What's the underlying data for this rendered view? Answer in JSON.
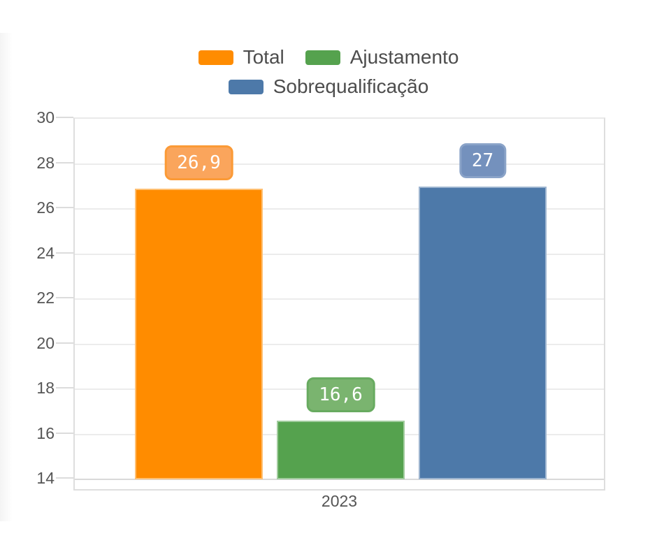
{
  "page": {
    "background": "#ffffff"
  },
  "legend": {
    "items": [
      {
        "label": "Total",
        "color": "#ff8c00"
      },
      {
        "label": "Ajustamento",
        "color": "#55a24e"
      },
      {
        "label": "Sobrequalificação",
        "color": "#4d79a9"
      }
    ],
    "text_color": "#4d4d4d"
  },
  "axes": {
    "y_tick_labels": [
      "30",
      "28",
      "26",
      "24",
      "22",
      "20",
      "18",
      "16",
      "14"
    ],
    "x_tick_labels": [
      "2023"
    ],
    "tick_label_color": "#555555",
    "grid_color": "#ececec",
    "axis_color": "#dedede"
  },
  "chart_data": {
    "type": "bar",
    "categories": [
      "2023"
    ],
    "series": [
      {
        "name": "Total",
        "values": [
          26.9
        ],
        "display_labels": [
          "26,9"
        ],
        "color": "#ff8c00",
        "label_bg": "#faa55c",
        "label_border": "#fb9a36"
      },
      {
        "name": "Ajustamento",
        "values": [
          16.6
        ],
        "display_labels": [
          "16,6"
        ],
        "color": "#55a24e",
        "label_bg": "#7ab46f",
        "label_border": "#68ab60"
      },
      {
        "name": "Sobrequalificação",
        "values": [
          27
        ],
        "display_labels": [
          "27"
        ],
        "color": "#4d79a9",
        "label_bg": "#7491bd",
        "label_border": "#8aa3c8"
      }
    ],
    "xlabel": "",
    "ylabel": "",
    "ylim": [
      14,
      30
    ],
    "ytick_step": 2,
    "grid": true,
    "legend_position": "top"
  }
}
